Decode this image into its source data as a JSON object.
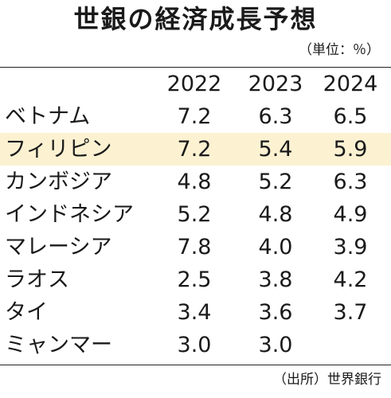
{
  "title": "世銀の経済成長予想",
  "unit": "（単位：％）",
  "source": "（出所）世界銀行",
  "colors": {
    "highlight_row": "#fcf2d2",
    "text": "#1a1a1a",
    "rule": "#222222"
  },
  "chart_data": {
    "type": "table",
    "title": "世銀の経済成長予想",
    "columns": [
      "2022",
      "2023",
      "2024"
    ],
    "highlighted_row": "フィリピン",
    "rows": [
      {
        "country": "ベトナム",
        "values": [
          "7.2",
          "6.3",
          "6.5"
        ]
      },
      {
        "country": "フィリピン",
        "values": [
          "7.2",
          "5.4",
          "5.9"
        ]
      },
      {
        "country": "カンボジア",
        "values": [
          "4.8",
          "5.2",
          "6.3"
        ]
      },
      {
        "country": "インドネシア",
        "values": [
          "5.2",
          "4.8",
          "4.9"
        ]
      },
      {
        "country": "マレーシア",
        "values": [
          "7.8",
          "4.0",
          "3.9"
        ]
      },
      {
        "country": "ラオス",
        "values": [
          "2.5",
          "3.8",
          "4.2"
        ]
      },
      {
        "country": "タイ",
        "values": [
          "3.4",
          "3.6",
          "3.7"
        ]
      },
      {
        "country": "ミャンマー",
        "values": [
          "3.0",
          "3.0",
          ""
        ]
      }
    ]
  }
}
